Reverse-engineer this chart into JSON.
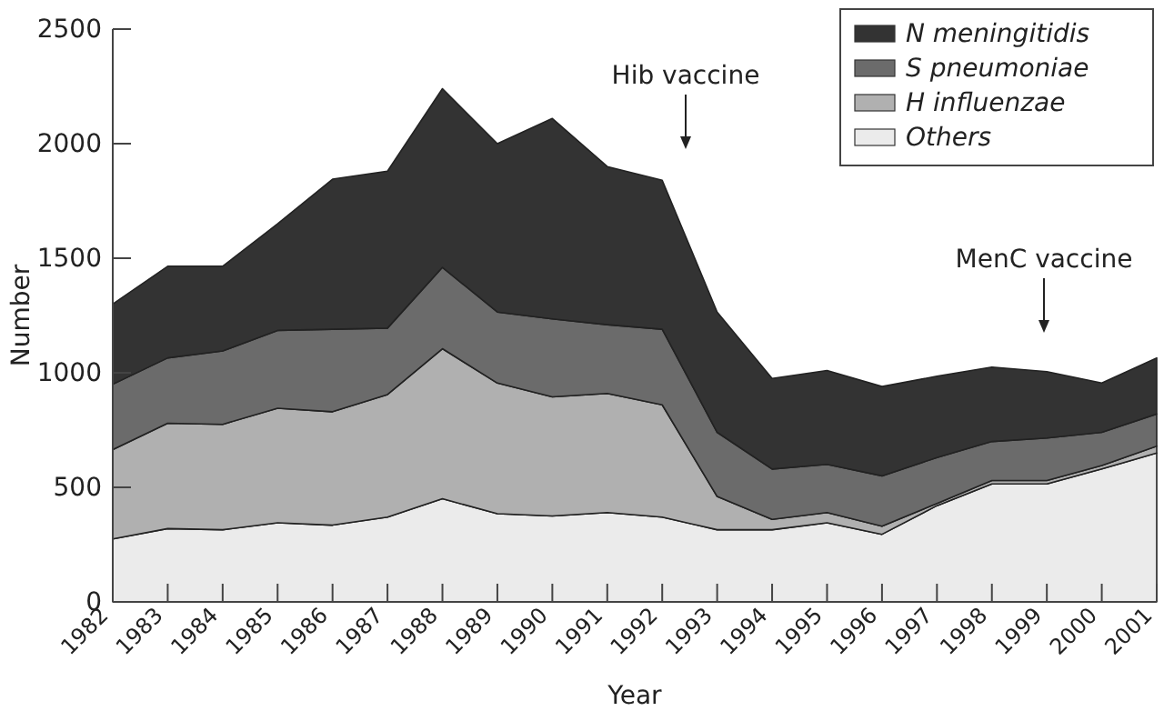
{
  "chart_data": {
    "type": "area",
    "stacked": true,
    "xlabel": "Year",
    "ylabel": "Number",
    "x": [
      1982,
      1983,
      1984,
      1985,
      1986,
      1987,
      1988,
      1989,
      1990,
      1991,
      1992,
      1993,
      1994,
      1995,
      1996,
      1997,
      1998,
      1999,
      2000,
      2001
    ],
    "xlim": [
      1982,
      2001
    ],
    "xticks": [
      1982,
      1983,
      1984,
      1985,
      1986,
      1987,
      1988,
      1989,
      1990,
      1991,
      1992,
      1993,
      1994,
      1995,
      1996,
      1997,
      1998,
      1999,
      2000,
      2001
    ],
    "ylim": [
      0,
      2500
    ],
    "yticks": [
      0,
      500,
      1000,
      1500,
      2000,
      2500
    ],
    "series": [
      {
        "name": "Others",
        "color": "#ebebeb",
        "values": [
          275,
          320,
          315,
          345,
          335,
          370,
          450,
          385,
          375,
          390,
          370,
          315,
          315,
          345,
          295,
          420,
          515,
          515,
          580,
          650
        ]
      },
      {
        "name": "H influenzae",
        "color": "#b0b0b0",
        "values": [
          390,
          460,
          460,
          500,
          495,
          535,
          655,
          570,
          520,
          520,
          490,
          145,
          45,
          45,
          35,
          10,
          15,
          15,
          15,
          30
        ]
      },
      {
        "name": "S pneumoniae",
        "color": "#6b6b6b",
        "values": [
          285,
          285,
          320,
          340,
          360,
          290,
          355,
          310,
          340,
          300,
          330,
          280,
          220,
          210,
          220,
          200,
          170,
          185,
          145,
          140
        ]
      },
      {
        "name": "N meningitidis",
        "color": "#333333",
        "values": [
          350,
          400,
          370,
          465,
          655,
          685,
          780,
          735,
          875,
          690,
          650,
          525,
          395,
          410,
          390,
          355,
          325,
          290,
          215,
          245
        ]
      }
    ],
    "annotations": [
      "Hib vaccine",
      "MenC vaccine"
    ],
    "legend": "top right",
    "grid": false
  }
}
